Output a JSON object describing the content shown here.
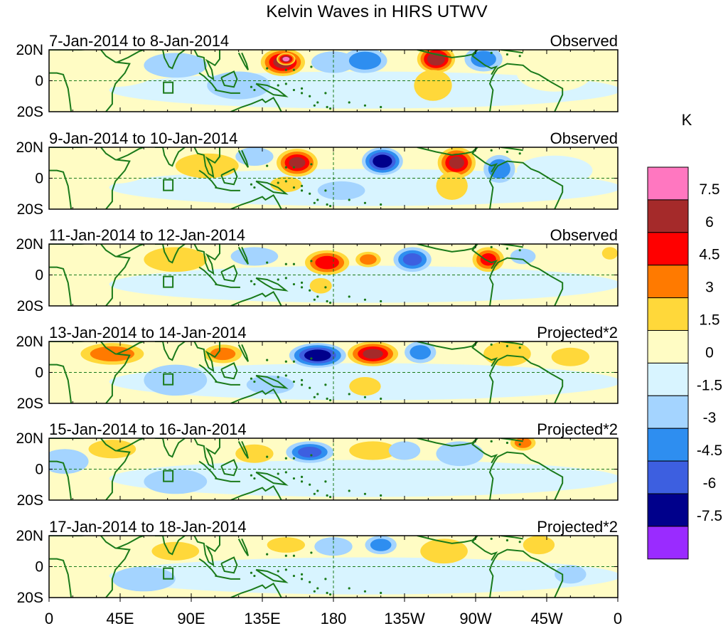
{
  "chart_data": {
    "type": "heatmap",
    "title": "Kelvin Waves in HIRS UTWV",
    "colorbar": {
      "unit": "K",
      "labels": [
        "7.5",
        "6",
        "4.5",
        "3",
        "1.5",
        "0",
        "-1.5",
        "-3",
        "-4.5",
        "-6",
        "-7.5"
      ],
      "colors": [
        "#ff77c0",
        "#a52a2a",
        "#ff0000",
        "#ff7a00",
        "#ffd83a",
        "#fffcc4",
        "#d8f4ff",
        "#a4d4ff",
        "#2e8ef0",
        "#3d5fe0",
        "#00008b",
        "#9a2bff"
      ]
    },
    "xaxis": {
      "ticks": [
        "0",
        "45E",
        "90E",
        "135E",
        "180",
        "135W",
        "90W",
        "45W",
        "0"
      ],
      "range": [
        0,
        360
      ]
    },
    "yaxis": {
      "ticks": [
        "20N",
        "0",
        "20S"
      ],
      "range": [
        -20,
        20
      ]
    },
    "panels": [
      {
        "date": "7-Jan-2014 to 8-Jan-2014",
        "kind": "Observed",
        "blobs": [
          {
            "lon": 148,
            "lat": 12,
            "rx": 14,
            "ry": 9,
            "v": 6.5
          },
          {
            "lon": 150,
            "lat": 14,
            "rx": 6,
            "ry": 4,
            "v": 8.0
          },
          {
            "lon": 180,
            "lat": 12,
            "rx": 14,
            "ry": 7,
            "v": -2.5
          },
          {
            "lon": 200,
            "lat": 13,
            "rx": 14,
            "ry": 8,
            "v": -4.0
          },
          {
            "lon": 245,
            "lat": 14,
            "rx": 12,
            "ry": 9,
            "v": 7.0
          },
          {
            "lon": 243,
            "lat": -3,
            "rx": 12,
            "ry": 10,
            "v": 2.0
          },
          {
            "lon": 275,
            "lat": 14,
            "rx": 12,
            "ry": 8,
            "v": -3.0
          },
          {
            "lon": 120,
            "lat": -3,
            "rx": 20,
            "ry": 9,
            "v": -1.5
          },
          {
            "lon": 40,
            "lat": 8,
            "rx": 25,
            "ry": 10,
            "v": 1.0
          },
          {
            "lon": 80,
            "lat": 10,
            "rx": 20,
            "ry": 8,
            "v": -1.5
          },
          {
            "lon": 320,
            "lat": 5,
            "rx": 20,
            "ry": 10,
            "v": 1.0
          }
        ]
      },
      {
        "date": "9-Jan-2014 to 10-Jan-2014",
        "kind": "Observed",
        "blobs": [
          {
            "lon": 157,
            "lat": 10,
            "rx": 13,
            "ry": 9,
            "v": 6.0
          },
          {
            "lon": 150,
            "lat": -4,
            "rx": 10,
            "ry": 5,
            "v": 2.0
          },
          {
            "lon": 211,
            "lat": 11,
            "rx": 13,
            "ry": 9,
            "v": -7.0
          },
          {
            "lon": 258,
            "lat": 10,
            "rx": 12,
            "ry": 10,
            "v": 6.0
          },
          {
            "lon": 255,
            "lat": -5,
            "rx": 10,
            "ry": 9,
            "v": 2.0
          },
          {
            "lon": 285,
            "lat": 6,
            "rx": 10,
            "ry": 9,
            "v": -3.5
          },
          {
            "lon": 100,
            "lat": 8,
            "rx": 20,
            "ry": 8,
            "v": 1.5
          },
          {
            "lon": 130,
            "lat": 14,
            "rx": 12,
            "ry": 6,
            "v": -2.0
          },
          {
            "lon": 185,
            "lat": -8,
            "rx": 15,
            "ry": 6,
            "v": -1.5
          },
          {
            "lon": 40,
            "lat": 6,
            "rx": 20,
            "ry": 8,
            "v": 1.0
          },
          {
            "lon": 320,
            "lat": 5,
            "rx": 20,
            "ry": 8,
            "v": -1.0
          }
        ]
      },
      {
        "date": "11-Jan-2014 to 12-Jan-2014",
        "kind": "Observed",
        "blobs": [
          {
            "lon": 176,
            "lat": 8,
            "rx": 14,
            "ry": 8,
            "v": 5.0
          },
          {
            "lon": 172,
            "lat": -7,
            "rx": 7,
            "ry": 5,
            "v": 2.5
          },
          {
            "lon": 202,
            "lat": 10,
            "rx": 8,
            "ry": 5,
            "v": 3.0
          },
          {
            "lon": 230,
            "lat": 10,
            "rx": 12,
            "ry": 8,
            "v": -4.5
          },
          {
            "lon": 278,
            "lat": 10,
            "rx": 10,
            "ry": 8,
            "v": 4.5
          },
          {
            "lon": 300,
            "lat": 12,
            "rx": 8,
            "ry": 5,
            "v": -2.5
          },
          {
            "lon": 130,
            "lat": 12,
            "rx": 15,
            "ry": 6,
            "v": -2.0
          },
          {
            "lon": 80,
            "lat": 10,
            "rx": 20,
            "ry": 8,
            "v": 1.5
          },
          {
            "lon": 30,
            "lat": 8,
            "rx": 15,
            "ry": 6,
            "v": 1.0
          },
          {
            "lon": 355,
            "lat": 14,
            "rx": 5,
            "ry": 4,
            "v": 2.5
          }
        ]
      },
      {
        "date": "13-Jan-2014 to 14-Jan-2014",
        "kind": "Projected*2",
        "blobs": [
          {
            "lon": 40,
            "lat": 12,
            "rx": 20,
            "ry": 7,
            "v": 3.5
          },
          {
            "lon": 110,
            "lat": 12,
            "rx": 12,
            "ry": 6,
            "v": 3.0
          },
          {
            "lon": 170,
            "lat": 11,
            "rx": 18,
            "ry": 8,
            "v": -7.0
          },
          {
            "lon": 205,
            "lat": 12,
            "rx": 16,
            "ry": 8,
            "v": 6.0
          },
          {
            "lon": 200,
            "lat": -9,
            "rx": 10,
            "ry": 6,
            "v": 2.5
          },
          {
            "lon": 235,
            "lat": 13,
            "rx": 10,
            "ry": 7,
            "v": -3.0
          },
          {
            "lon": 290,
            "lat": 12,
            "rx": 15,
            "ry": 8,
            "v": 2.0
          },
          {
            "lon": 80,
            "lat": -5,
            "rx": 20,
            "ry": 10,
            "v": -2.0
          },
          {
            "lon": 140,
            "lat": -8,
            "rx": 15,
            "ry": 6,
            "v": -1.5
          },
          {
            "lon": 330,
            "lat": 10,
            "rx": 12,
            "ry": 6,
            "v": 1.5
          }
        ]
      },
      {
        "date": "15-Jan-2014 to 16-Jan-2014",
        "kind": "Projected*2",
        "blobs": [
          {
            "lon": 40,
            "lat": 13,
            "rx": 15,
            "ry": 6,
            "v": 1.5
          },
          {
            "lon": 130,
            "lat": 10,
            "rx": 12,
            "ry": 6,
            "v": 2.0
          },
          {
            "lon": 165,
            "lat": 11,
            "rx": 15,
            "ry": 7,
            "v": -4.5
          },
          {
            "lon": 205,
            "lat": 12,
            "rx": 15,
            "ry": 6,
            "v": 1.5
          },
          {
            "lon": 225,
            "lat": 12,
            "rx": 10,
            "ry": 6,
            "v": -2.0
          },
          {
            "lon": 300,
            "lat": 17,
            "rx": 8,
            "ry": 5,
            "v": 3.0
          },
          {
            "lon": 260,
            "lat": 10,
            "rx": 15,
            "ry": 8,
            "v": -2.0
          },
          {
            "lon": 80,
            "lat": -8,
            "rx": 20,
            "ry": 8,
            "v": -1.5
          },
          {
            "lon": 10,
            "lat": 5,
            "rx": 15,
            "ry": 8,
            "v": -1.5
          }
        ]
      },
      {
        "date": "17-Jan-2014 to 18-Jan-2014",
        "kind": "Projected*2",
        "blobs": [
          {
            "lon": 80,
            "lat": 10,
            "rx": 15,
            "ry": 6,
            "v": 1.5
          },
          {
            "lon": 150,
            "lat": 14,
            "rx": 12,
            "ry": 5,
            "v": 1.5
          },
          {
            "lon": 180,
            "lat": 13,
            "rx": 12,
            "ry": 6,
            "v": -2.0
          },
          {
            "lon": 210,
            "lat": 14,
            "rx": 10,
            "ry": 6,
            "v": -3.0
          },
          {
            "lon": 250,
            "lat": 10,
            "rx": 15,
            "ry": 8,
            "v": 1.5
          },
          {
            "lon": 310,
            "lat": 14,
            "rx": 10,
            "ry": 6,
            "v": 1.5
          },
          {
            "lon": 330,
            "lat": -5,
            "rx": 10,
            "ry": 6,
            "v": -1.5
          },
          {
            "lon": 60,
            "lat": -8,
            "rx": 20,
            "ry": 8,
            "v": -1.5
          }
        ]
      }
    ]
  }
}
